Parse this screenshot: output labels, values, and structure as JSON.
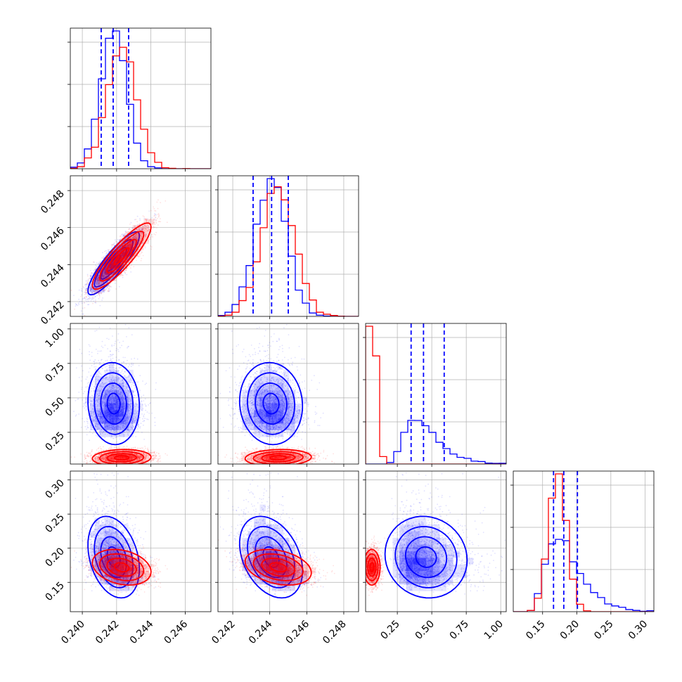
{
  "chart_data": {
    "type": "corner",
    "title": "",
    "grid": true,
    "parameters": [
      {
        "range": [
          0.2393,
          0.2475
        ],
        "ticks": [
          0.24,
          0.242,
          0.244,
          0.246
        ],
        "tick_labels": [
          "0.240",
          "0.242",
          "0.244",
          "0.246"
        ]
      },
      {
        "range": [
          0.2412,
          0.2488
        ],
        "ticks": [
          0.242,
          0.244,
          0.246,
          0.248
        ],
        "tick_labels": [
          "0.242",
          "0.244",
          "0.246",
          "0.248"
        ]
      },
      {
        "range": [
          0.02,
          1.04
        ],
        "ticks": [
          0.25,
          0.5,
          0.75,
          1.0
        ],
        "tick_labels": [
          "0.25",
          "0.50",
          "0.75",
          "1.00"
        ]
      },
      {
        "range": [
          0.107,
          0.313
        ],
        "ticks": [
          0.15,
          0.2,
          0.25,
          0.3
        ],
        "tick_labels": [
          "0.15",
          "0.20",
          "0.25",
          "0.30"
        ]
      }
    ],
    "series": [
      {
        "color": "#0000ff",
        "mean": [
          0.24185,
          0.2441,
          0.46,
          0.186
        ],
        "std": [
          0.00075,
          0.00085,
          0.13,
          0.026
        ],
        "skew": [
          0,
          0,
          1.2,
          1.2
        ],
        "correlation": [
          [
            1.0,
            0.88,
            -0.05,
            -0.3
          ],
          [
            0.88,
            1.0,
            -0.05,
            -0.35
          ],
          [
            -0.05,
            -0.05,
            1.0,
            -0.1
          ],
          [
            -0.3,
            -0.35,
            -0.1,
            1.0
          ]
        ],
        "quantiles_16_50_84": [
          [
            0.2411,
            0.2418,
            0.2427
          ],
          [
            0.2431,
            0.2441,
            0.245
          ],
          [
            0.35,
            0.44,
            0.59
          ],
          [
            0.166,
            0.181,
            0.201
          ]
        ]
      },
      {
        "color": "#ff0000",
        "mean": [
          0.2423,
          0.24445,
          0.065,
          0.172
        ],
        "std": [
          0.00085,
          0.0009,
          0.03,
          0.013
        ],
        "skew": [
          0,
          0,
          0,
          0
        ],
        "correlation": [
          [
            1.0,
            0.88,
            0.1,
            -0.25
          ],
          [
            0.88,
            1.0,
            0.1,
            -0.3
          ],
          [
            0.1,
            0.1,
            1.0,
            0.0
          ],
          [
            -0.25,
            -0.3,
            0.0,
            1.0
          ]
        ],
        "quantiles_16_50_84": []
      }
    ]
  }
}
